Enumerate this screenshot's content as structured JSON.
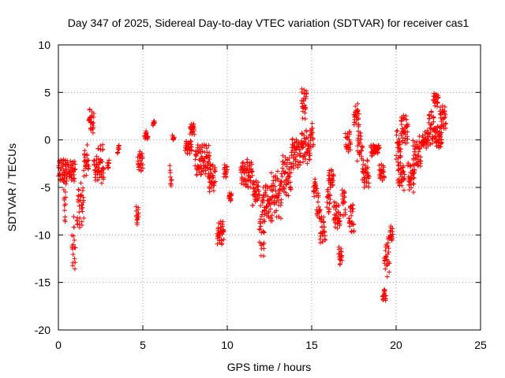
{
  "chart_data": {
    "type": "scatter",
    "title": "Day 347 of 2025, Sidereal Day-to-day VTEC variation (SDTVAR) for receiver cas1",
    "xlabel": "GPS time / hours",
    "ylabel": "SDTVAR / TECUs",
    "xlim": [
      0,
      25
    ],
    "ylim": [
      -20,
      10
    ],
    "xticks": [
      0,
      5,
      10,
      15,
      20,
      25
    ],
    "yticks": [
      -20,
      -15,
      -10,
      -5,
      0,
      5,
      10
    ],
    "xtick_labels": [
      "0",
      "5",
      "10",
      "15",
      "20",
      "25"
    ],
    "ytick_labels": [
      "-20",
      "-15",
      "-10",
      "-5",
      "0",
      "5",
      "10"
    ],
    "grid": true,
    "marker": "plus",
    "series": [
      {
        "name": "cas1",
        "color": "#ff0000",
        "segments": [
          {
            "t": [
              0.0,
              0.55
            ],
            "lo": -4.5,
            "hi": -2.0
          },
          {
            "t": [
              0.3,
              0.45
            ],
            "lo": -9.5,
            "hi": -4.0
          },
          {
            "t": [
              0.6,
              1.0
            ],
            "lo": -4.5,
            "hi": -2.0
          },
          {
            "t": [
              0.8,
              1.0
            ],
            "lo": -14.0,
            "hi": -8.0
          },
          {
            "t": [
              1.1,
              1.5
            ],
            "lo": -9.5,
            "hi": -4.0
          },
          {
            "t": [
              1.5,
              1.8
            ],
            "lo": -4.5,
            "hi": -0.5
          },
          {
            "t": [
              1.8,
              2.1
            ],
            "lo": 0.5,
            "hi": 3.5
          },
          {
            "t": [
              2.1,
              2.35
            ],
            "lo": -4.5,
            "hi": -1.5
          },
          {
            "t": [
              2.35,
              2.7
            ],
            "lo": -5.0,
            "hi": -0.5
          },
          {
            "t": [
              2.9,
              3.0
            ],
            "lo": -3.0,
            "hi": -2.0
          },
          {
            "t": [
              3.5,
              3.6
            ],
            "lo": -1.5,
            "hi": -0.5
          },
          {
            "t": [
              4.6,
              4.75
            ],
            "lo": -9.0,
            "hi": -7.0
          },
          {
            "t": [
              4.7,
              5.0
            ],
            "lo": -3.5,
            "hi": -1.0
          },
          {
            "t": [
              5.1,
              5.3
            ],
            "lo": 0.0,
            "hi": 1.0
          },
          {
            "t": [
              5.6,
              5.7
            ],
            "lo": 1.5,
            "hi": 2.0
          },
          {
            "t": [
              6.6,
              6.7
            ],
            "lo": -5.0,
            "hi": -2.5
          },
          {
            "t": [
              6.75,
              6.85
            ],
            "lo": 0.0,
            "hi": 0.5
          },
          {
            "t": [
              7.5,
              7.9
            ],
            "lo": -1.5,
            "hi": 0.0
          },
          {
            "t": [
              7.8,
              8.05
            ],
            "lo": 0.5,
            "hi": 2.0
          },
          {
            "t": [
              8.1,
              9.0
            ],
            "lo": -4.0,
            "hi": -0.5
          },
          {
            "t": [
              8.9,
              9.3
            ],
            "lo": -5.5,
            "hi": -2.5
          },
          {
            "t": [
              9.4,
              9.8
            ],
            "lo": -11.0,
            "hi": -8.5
          },
          {
            "t": [
              9.8,
              10.0
            ],
            "lo": -4.0,
            "hi": -2.5
          },
          {
            "t": [
              10.1,
              10.25
            ],
            "lo": -6.5,
            "hi": -5.5
          },
          {
            "t": [
              10.8,
              11.5
            ],
            "lo": -5.0,
            "hi": -2.0
          },
          {
            "t": [
              11.5,
              11.9
            ],
            "lo": -7.0,
            "hi": -4.0
          },
          {
            "t": [
              11.9,
              12.2
            ],
            "lo": -12.5,
            "hi": -6.0
          },
          {
            "t": [
              12.1,
              12.6
            ],
            "lo": -9.0,
            "hi": -4.5
          },
          {
            "t": [
              12.6,
              13.2
            ],
            "lo": -8.5,
            "hi": -3.0
          },
          {
            "t": [
              13.2,
              13.8
            ],
            "lo": -6.0,
            "hi": -1.5
          },
          {
            "t": [
              13.8,
              14.4
            ],
            "lo": -3.0,
            "hi": 0.5
          },
          {
            "t": [
              14.4,
              14.7
            ],
            "lo": 2.0,
            "hi": 5.5
          },
          {
            "t": [
              14.4,
              14.9
            ],
            "lo": -2.5,
            "hi": 1.0
          },
          {
            "t": [
              14.9,
              15.1
            ],
            "lo": -1.0,
            "hi": 2.0
          },
          {
            "t": [
              15.1,
              15.3
            ],
            "lo": -6.0,
            "hi": -4.0
          },
          {
            "t": [
              15.3,
              15.5
            ],
            "lo": -8.5,
            "hi": -5.5
          },
          {
            "t": [
              15.5,
              15.8
            ],
            "lo": -11.0,
            "hi": -8.0
          },
          {
            "t": [
              15.9,
              16.1
            ],
            "lo": -8.0,
            "hi": -5.0
          },
          {
            "t": [
              16.0,
              16.3
            ],
            "lo": -5.0,
            "hi": -3.0
          },
          {
            "t": [
              16.3,
              16.7
            ],
            "lo": -9.5,
            "hi": -6.5
          },
          {
            "t": [
              16.6,
              16.8
            ],
            "lo": -13.5,
            "hi": -11.0
          },
          {
            "t": [
              16.8,
              17.0
            ],
            "lo": -8.0,
            "hi": -5.0
          },
          {
            "t": [
              17.0,
              17.3
            ],
            "lo": -1.5,
            "hi": 1.0
          },
          {
            "t": [
              17.2,
              17.5
            ],
            "lo": -10.0,
            "hi": -6.5
          },
          {
            "t": [
              17.5,
              17.8
            ],
            "lo": 1.5,
            "hi": 4.0
          },
          {
            "t": [
              17.7,
              18.0
            ],
            "lo": -2.5,
            "hi": 1.5
          },
          {
            "t": [
              18.0,
              18.4
            ],
            "lo": -5.0,
            "hi": -2.0
          },
          {
            "t": [
              18.5,
              18.7
            ],
            "lo": -2.0,
            "hi": -0.5
          },
          {
            "t": [
              18.7,
              19.0
            ],
            "lo": -1.5,
            "hi": -0.5
          },
          {
            "t": [
              19.0,
              19.3
            ],
            "lo": -4.5,
            "hi": -2.5
          },
          {
            "t": [
              19.2,
              19.4
            ],
            "lo": -17.0,
            "hi": -15.5
          },
          {
            "t": [
              19.3,
              19.6
            ],
            "lo": -14.5,
            "hi": -10.0
          },
          {
            "t": [
              19.6,
              19.8
            ],
            "lo": -11.0,
            "hi": -9.0
          },
          {
            "t": [
              20.0,
              20.3
            ],
            "lo": -3.0,
            "hi": 1.5
          },
          {
            "t": [
              20.1,
              20.5
            ],
            "lo": -5.5,
            "hi": -2.0
          },
          {
            "t": [
              20.3,
              20.7
            ],
            "lo": -0.5,
            "hi": 3.0
          },
          {
            "t": [
              20.7,
              21.1
            ],
            "lo": -5.5,
            "hi": -2.0
          },
          {
            "t": [
              21.0,
              21.5
            ],
            "lo": -3.0,
            "hi": 0.5
          },
          {
            "t": [
              21.5,
              21.9
            ],
            "lo": -1.0,
            "hi": 1.0
          },
          {
            "t": [
              21.9,
              22.3
            ],
            "lo": -0.5,
            "hi": 3.0
          },
          {
            "t": [
              22.2,
              22.5
            ],
            "lo": 3.5,
            "hi": 5.0
          },
          {
            "t": [
              22.3,
              22.7
            ],
            "lo": -1.0,
            "hi": 1.5
          },
          {
            "t": [
              22.6,
              22.95
            ],
            "lo": 0.5,
            "hi": 4.0
          }
        ]
      }
    ]
  }
}
